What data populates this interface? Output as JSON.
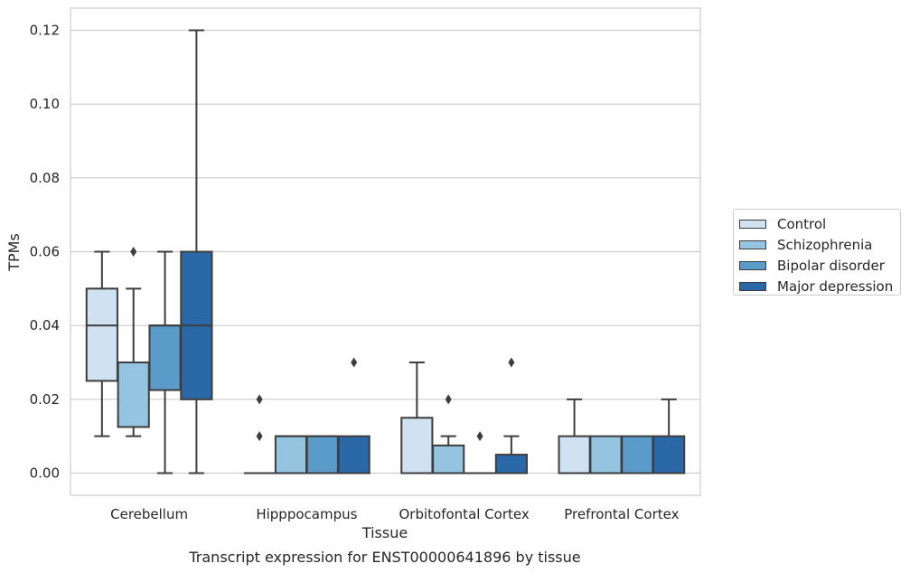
{
  "chart_data": {
    "type": "box",
    "title": "Transcript expression for ENST00000641896 by tissue",
    "xlabel": "Tissue",
    "ylabel": "TPMs",
    "ylim": [
      -0.006,
      0.126
    ],
    "yticks": [
      0.0,
      0.02,
      0.04,
      0.06,
      0.08,
      0.1,
      0.12
    ],
    "ytick_labels": [
      "0.00",
      "0.02",
      "0.04",
      "0.06",
      "0.08",
      "0.10",
      "0.12"
    ],
    "grid": "horizontal",
    "legend_position": "right, outside plot",
    "categories": [
      "Cerebellum",
      "Hipppocampus",
      "Orbitofontal Cortex",
      "Prefrontal Cortex"
    ],
    "series": [
      {
        "name": "Control",
        "color": "#d0e1f2",
        "boxes": [
          {
            "whislo": 0.01,
            "q1": 0.025,
            "med": 0.04,
            "q3": 0.05,
            "whishi": 0.06,
            "fliers": []
          },
          {
            "whislo": 0.0,
            "q1": 0.0,
            "med": 0.0,
            "q3": 0.0,
            "whishi": 0.0,
            "fliers": [
              0.01,
              0.02
            ]
          },
          {
            "whislo": 0.0,
            "q1": 0.0,
            "med": 0.0,
            "q3": 0.015,
            "whishi": 0.03,
            "fliers": []
          },
          {
            "whislo": 0.0,
            "q1": 0.0,
            "med": 0.0,
            "q3": 0.01,
            "whishi": 0.02,
            "fliers": []
          }
        ]
      },
      {
        "name": "Schizophrenia",
        "color": "#94c4df",
        "boxes": [
          {
            "whislo": 0.01,
            "q1": 0.0125,
            "med": 0.03,
            "q3": 0.03,
            "whishi": 0.05,
            "fliers": [
              0.06
            ]
          },
          {
            "whislo": 0.0,
            "q1": 0.0,
            "med": 0.01,
            "q3": 0.01,
            "whishi": 0.01,
            "fliers": []
          },
          {
            "whislo": 0.0,
            "q1": 0.0,
            "med": 0.0,
            "q3": 0.0075,
            "whishi": 0.01,
            "fliers": [
              0.02
            ]
          },
          {
            "whislo": 0.0,
            "q1": 0.0,
            "med": 0.0,
            "q3": 0.01,
            "whishi": 0.01,
            "fliers": []
          }
        ]
      },
      {
        "name": "Bipolar disorder",
        "color": "#5b9bc9",
        "boxes": [
          {
            "whislo": 0.0,
            "q1": 0.0225,
            "med": 0.04,
            "q3": 0.04,
            "whishi": 0.06,
            "fliers": []
          },
          {
            "whislo": 0.0,
            "q1": 0.0,
            "med": 0.01,
            "q3": 0.01,
            "whishi": 0.01,
            "fliers": []
          },
          {
            "whislo": 0.0,
            "q1": 0.0,
            "med": 0.0,
            "q3": 0.0,
            "whishi": 0.0,
            "fliers": [
              0.01
            ]
          },
          {
            "whislo": 0.0,
            "q1": 0.0,
            "med": 0.0,
            "q3": 0.01,
            "whishi": 0.01,
            "fliers": []
          }
        ]
      },
      {
        "name": "Major depression",
        "color": "#2a68a8",
        "boxes": [
          {
            "whislo": 0.0,
            "q1": 0.02,
            "med": 0.04,
            "q3": 0.06,
            "whishi": 0.12,
            "fliers": []
          },
          {
            "whislo": 0.0,
            "q1": 0.0,
            "med": 0.0,
            "q3": 0.01,
            "whishi": 0.01,
            "fliers": [
              0.03
            ]
          },
          {
            "whislo": 0.0,
            "q1": 0.0,
            "med": 0.0,
            "q3": 0.005,
            "whishi": 0.01,
            "fliers": [
              0.03
            ]
          },
          {
            "whislo": 0.0,
            "q1": 0.0,
            "med": 0.0,
            "q3": 0.01,
            "whishi": 0.02,
            "fliers": []
          }
        ]
      }
    ]
  }
}
